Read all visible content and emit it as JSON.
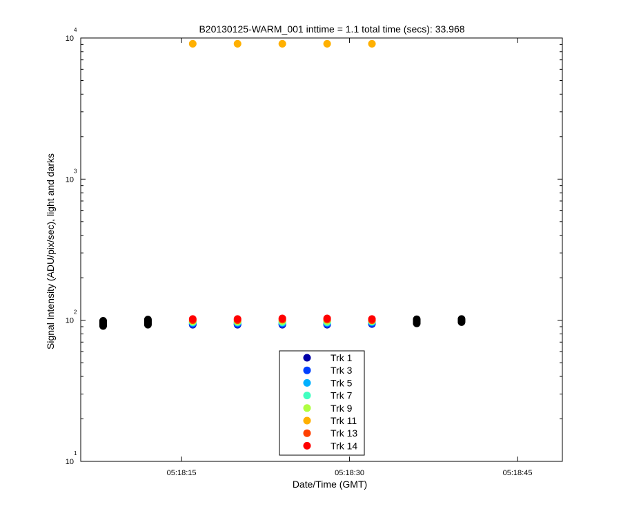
{
  "chart_data": {
    "type": "scatter",
    "title": "B20130125-WARM_001 inttime = 1.1 total time (secs): 33.968",
    "xlabel": "Date/Time (GMT)",
    "ylabel": "Signal Intensity (ADU/pix/sec), light and darks",
    "yscale": "log",
    "ylim": [
      10,
      10000
    ],
    "xlim": [
      "05:18:06",
      "05:18:49"
    ],
    "x_ticks": [
      "05:18:15",
      "05:18:30",
      "05:18:45"
    ],
    "y_ticks": [
      {
        "base": "10",
        "exp": "1",
        "value": 10
      },
      {
        "base": "10",
        "exp": "2",
        "value": 100
      },
      {
        "base": "10",
        "exp": "3",
        "value": 1000
      },
      {
        "base": "10",
        "exp": "4",
        "value": 10000
      }
    ],
    "grid": false,
    "legend_position": "bottom-center",
    "series": [
      {
        "name": "Trk 1",
        "color": "#0000a8",
        "x": [
          "05:18:16",
          "05:18:20",
          "05:18:24",
          "05:18:28",
          "05:18:32"
        ],
        "y": [
          93,
          93,
          93,
          93,
          94
        ]
      },
      {
        "name": "Trk 3",
        "color": "#0040ff",
        "x": [
          "05:18:16",
          "05:18:20",
          "05:18:24",
          "05:18:28",
          "05:18:32"
        ],
        "y": [
          94,
          94,
          94,
          94,
          95
        ]
      },
      {
        "name": "Trk 5",
        "color": "#00b0ff",
        "x": [
          "05:18:16",
          "05:18:20",
          "05:18:24",
          "05:18:28",
          "05:18:32"
        ],
        "y": [
          96,
          96,
          96,
          96,
          97
        ]
      },
      {
        "name": "Trk 7",
        "color": "#40ffc0",
        "x": [
          "05:18:16",
          "05:18:20",
          "05:18:24",
          "05:18:28",
          "05:18:32"
        ],
        "y": [
          97,
          97,
          97,
          97,
          98
        ]
      },
      {
        "name": "Trk 9",
        "color": "#b0ff40",
        "x": [
          "05:18:16",
          "05:18:20",
          "05:18:24",
          "05:18:28",
          "05:18:32"
        ],
        "y": [
          98,
          98,
          99,
          99,
          99
        ]
      },
      {
        "name": "Trk 11",
        "color": "#ffb000",
        "x": [
          "05:18:16",
          "05:18:20",
          "05:18:24",
          "05:18:28",
          "05:18:32"
        ],
        "y": [
          9100,
          9100,
          9100,
          9100,
          9100
        ]
      },
      {
        "name": "Trk 13",
        "color": "#ff4000",
        "x": [
          "05:18:16",
          "05:18:20",
          "05:18:24",
          "05:18:28",
          "05:18:32"
        ],
        "y": [
          100,
          100,
          101,
          101,
          100
        ]
      },
      {
        "name": "Trk 14",
        "color": "#ff0000",
        "x": [
          "05:18:16",
          "05:18:20",
          "05:18:24",
          "05:18:28",
          "05:18:32"
        ],
        "y": [
          102,
          102,
          103,
          103,
          102
        ]
      }
    ],
    "darks": {
      "color": "#000000",
      "x": [
        "05:18:08",
        "05:18:12",
        "05:18:36",
        "05:18:40"
      ],
      "y_min": [
        91,
        93,
        95,
        97
      ],
      "y_max": [
        100,
        102,
        103,
        103
      ]
    }
  }
}
